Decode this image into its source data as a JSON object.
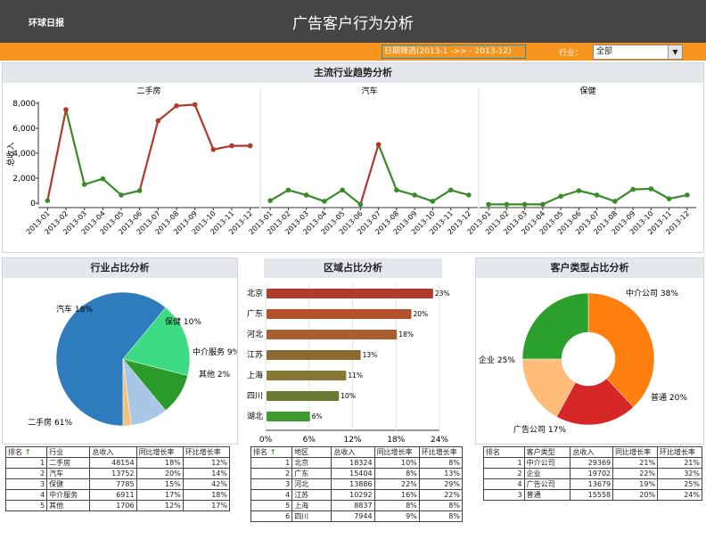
{
  "header": {
    "left_label": "环球日报",
    "title": "广告客户行为分析"
  },
  "filter": {
    "date_range": "日期筛选(2013-1 ->> - 2013-12)",
    "industry_label": "行业：",
    "industry_value": "全部"
  },
  "colors": {
    "header_bg": "#454545",
    "filter_bg": "#f7941d",
    "line_green": "#3a8a2a",
    "line_red": "#b0392a"
  },
  "trend": {
    "title": "主流行业趋势分析",
    "ylabel": "总收入",
    "y_ticks": [
      "8,000",
      "6,000",
      "4,000",
      "2,000",
      "0"
    ],
    "months": [
      "2013-01",
      "2013-02",
      "2013-03",
      "2013-04",
      "2013-05",
      "2013-06",
      "2013-07",
      "2013-08",
      "2013-09",
      "2013-10",
      "2013-11",
      "2013-12"
    ]
  },
  "bar_panel": {
    "title": "区域占比分析"
  },
  "industry_panel": {
    "title": "行业占比分析"
  },
  "customer_panel": {
    "title": "客户类型占比分析"
  },
  "chart_data": [
    {
      "type": "line",
      "title": "二手房",
      "x": [
        "2013-01",
        "2013-02",
        "2013-03",
        "2013-04",
        "2013-05",
        "2013-06",
        "2013-07",
        "2013-08",
        "2013-09",
        "2013-10",
        "2013-11",
        "2013-12"
      ],
      "values": [
        200,
        7500,
        1500,
        1950,
        650,
        1000,
        6600,
        7800,
        7900,
        4300,
        4600,
        4600
      ],
      "ylim": [
        0,
        8000
      ]
    },
    {
      "type": "line",
      "title": "汽车",
      "x": [
        "2013-01",
        "2013-02",
        "2013-03",
        "2013-04",
        "2013-05",
        "2013-06",
        "2013-07",
        "2013-08",
        "2013-09",
        "2013-10",
        "2013-11",
        "2013-12"
      ],
      "values": [
        200,
        1050,
        650,
        150,
        1050,
        -100,
        4700,
        1050,
        650,
        150,
        1050,
        650
      ],
      "ylim": [
        0,
        8000
      ]
    },
    {
      "type": "line",
      "title": "保健",
      "x": [
        "2013-01",
        "2013-02",
        "2013-03",
        "2013-04",
        "2013-05",
        "2013-06",
        "2013-07",
        "2013-08",
        "2013-09",
        "2013-10",
        "2013-11",
        "2013-12"
      ],
      "values": [
        -100,
        -100,
        -100,
        -100,
        550,
        1000,
        650,
        150,
        1100,
        1150,
        350,
        650
      ],
      "ylim": [
        0,
        8000
      ]
    },
    {
      "type": "pie",
      "labels": [
        "二手房 61%",
        "汽车 18%",
        "保健 10%",
        "中介服务 9%",
        "其他 2%"
      ],
      "values": [
        61,
        18,
        10,
        9,
        2
      ],
      "colors": [
        "#2e7bbd",
        "#3ddc84",
        "#2a9a2a",
        "#aac6e6",
        "#f1c27d"
      ]
    },
    {
      "type": "bar",
      "categories": [
        "北京",
        "广东",
        "河北",
        "江苏",
        "上海",
        "四川",
        "湖北"
      ],
      "values": [
        23,
        20,
        18,
        13,
        11,
        10,
        6
      ],
      "data_labels": [
        "23%",
        "20%",
        "18%",
        "13%",
        "11%",
        "10%",
        "6%"
      ],
      "x_ticks": [
        "0%",
        "6%",
        "12%",
        "18%",
        "24%"
      ],
      "xlim": [
        0,
        24
      ],
      "colors": [
        "#b23a2b",
        "#b5502c",
        "#a8602e",
        "#8a6a30",
        "#857a34",
        "#6a7a30",
        "#3e9a2e"
      ]
    },
    {
      "type": "pie",
      "labels": [
        "中介公司 38%",
        "普通 20%",
        "广告公司 17%",
        "企业 25%"
      ],
      "values": [
        38,
        20,
        17,
        25
      ],
      "colors": [
        "#ff7f0e",
        "#d62728",
        "#ffbb78",
        "#2ca02c"
      ]
    }
  ],
  "table_industry": {
    "headers": [
      "排名",
      "行业",
      "总收入",
      "同比增长率",
      "环比增长率"
    ],
    "rows": [
      [
        "1",
        "二手房",
        "48154",
        "18%",
        "12%"
      ],
      [
        "2",
        "汽车",
        "13752",
        "20%",
        "14%"
      ],
      [
        "3",
        "保健",
        "7785",
        "15%",
        "42%"
      ],
      [
        "4",
        "中介服务",
        "6911",
        "17%",
        "18%"
      ],
      [
        "5",
        "其他",
        "1706",
        "12%",
        "17%"
      ]
    ]
  },
  "table_region": {
    "headers": [
      "排名",
      "地区",
      "总收入",
      "同比增长率",
      "环比增长率"
    ],
    "rows": [
      [
        "1",
        "北京",
        "18324",
        "10%",
        "8%"
      ],
      [
        "2",
        "广东",
        "15404",
        "8%",
        "13%"
      ],
      [
        "3",
        "河北",
        "13886",
        "22%",
        "29%"
      ],
      [
        "4",
        "江苏",
        "10292",
        "16%",
        "22%"
      ],
      [
        "5",
        "上海",
        "8837",
        "8%",
        "8%"
      ],
      [
        "6",
        "四川",
        "7944",
        "9%",
        "8%"
      ]
    ]
  },
  "table_customer": {
    "headers": [
      "排名",
      "客户类型",
      "总收入",
      "同比增长率",
      "环比增长率"
    ],
    "rows": [
      [
        "1",
        "中介公司",
        "29369",
        "21%",
        "21%"
      ],
      [
        "2",
        "企业",
        "19702",
        "22%",
        "32%"
      ],
      [
        "4",
        "广告公司",
        "13679",
        "19%",
        "25%"
      ],
      [
        "3",
        "普通",
        "15558",
        "20%",
        "24%"
      ]
    ]
  }
}
